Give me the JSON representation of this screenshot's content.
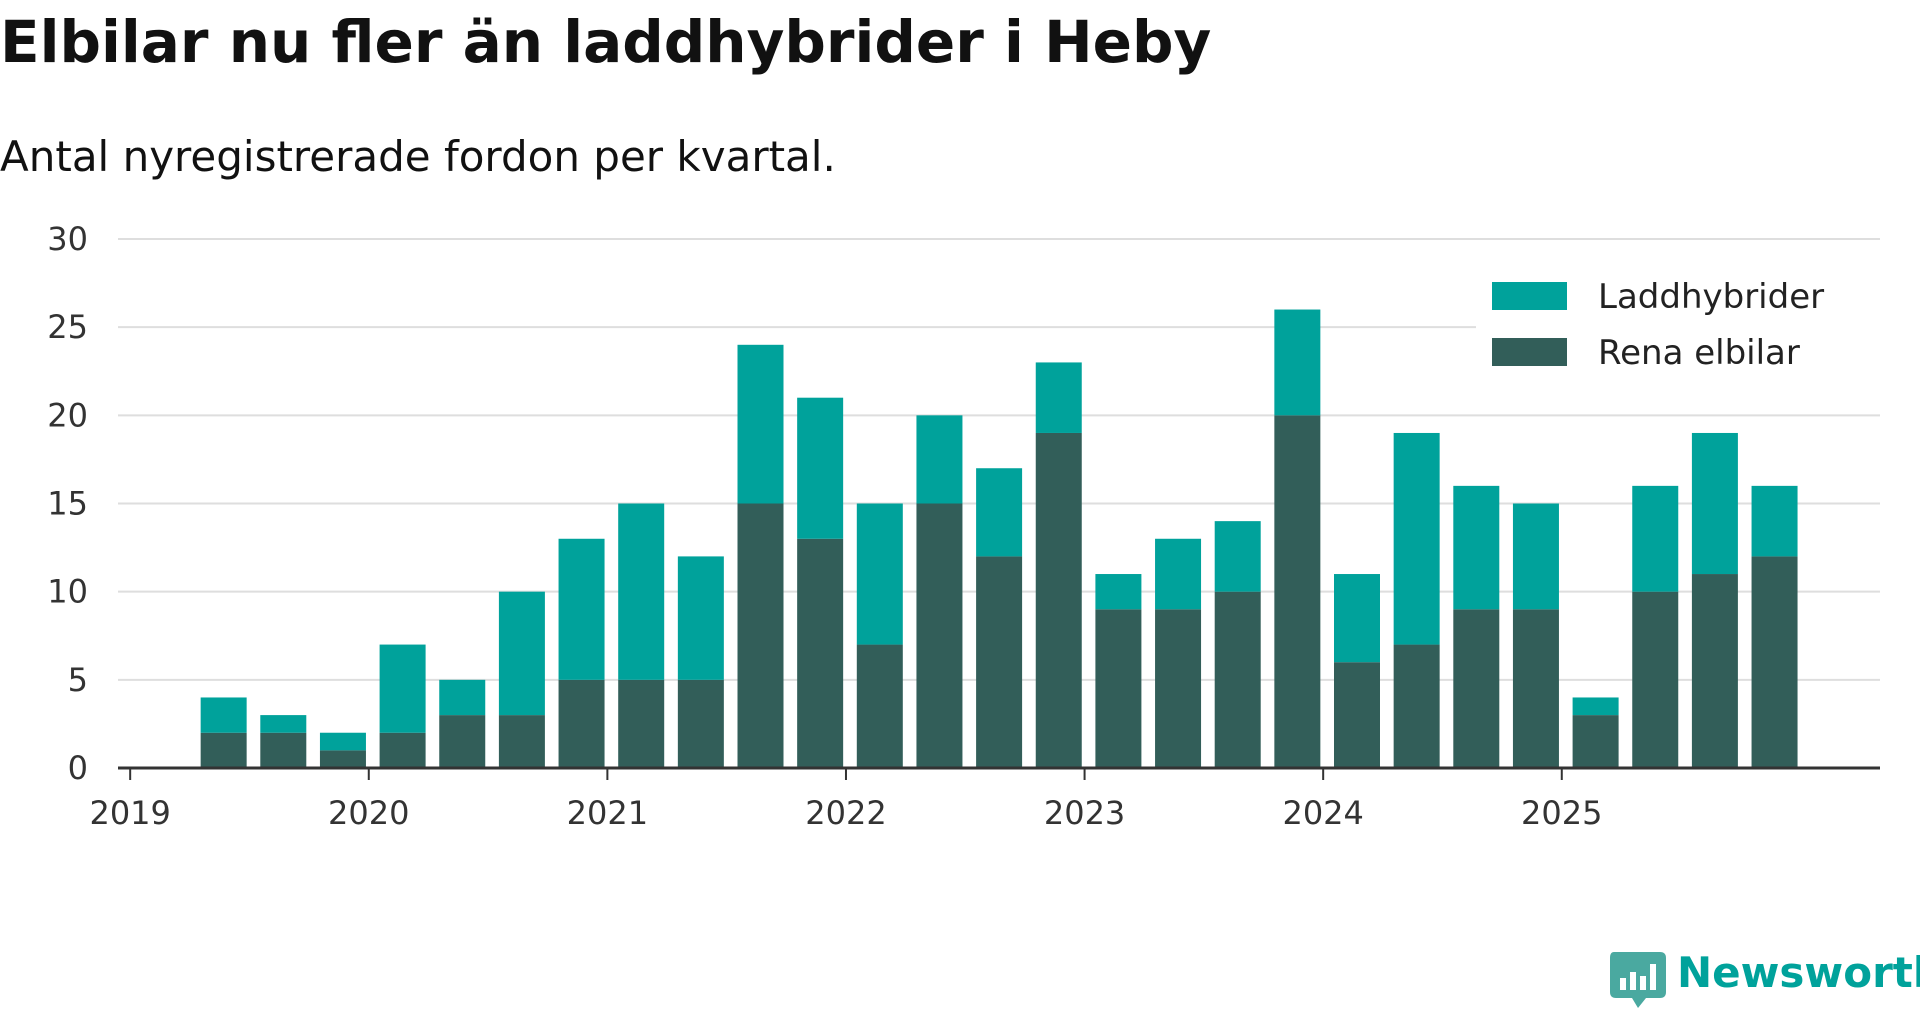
{
  "colors": {
    "phev": "#00a29b",
    "bev": "#325e59",
    "grid": "#dedede",
    "axis": "#333333",
    "brand": "#00a29b"
  },
  "brand": {
    "name": "Newsworthy"
  },
  "chart_data": {
    "type": "bar",
    "stacked": true,
    "title": "Elbilar nu fler än laddhybrider i Heby",
    "subtitle": "Antal nyregistrerade fordon per kvartal.",
    "xlabel": "",
    "ylabel": "",
    "ylim": [
      0,
      30
    ],
    "yticks": [
      0,
      5,
      10,
      15,
      20,
      25,
      30
    ],
    "xticks": [
      "2019",
      "2020",
      "2021",
      "2022",
      "2023",
      "2024",
      "2025"
    ],
    "grid": true,
    "legend_position": "top-right",
    "categories": [
      "2019 Q1",
      "2019 Q2",
      "2019 Q3",
      "2019 Q4",
      "2020 Q1",
      "2020 Q2",
      "2020 Q3",
      "2020 Q4",
      "2021 Q1",
      "2021 Q2",
      "2021 Q3",
      "2021 Q4",
      "2022 Q1",
      "2022 Q2",
      "2022 Q3",
      "2022 Q4",
      "2023 Q1",
      "2023 Q2",
      "2023 Q3",
      "2023 Q4",
      "2024 Q1",
      "2024 Q2",
      "2024 Q3",
      "2024 Q4",
      "2025 Q1",
      "2025 Q2",
      "2025 Q3",
      "2025 Q4"
    ],
    "series": [
      {
        "name": "Rena elbilar",
        "color": "#325e59",
        "values": [
          0,
          2,
          2,
          1,
          2,
          3,
          3,
          5,
          5,
          5,
          15,
          13,
          7,
          15,
          12,
          19,
          9,
          9,
          10,
          20,
          6,
          7,
          9,
          9,
          3,
          10,
          11,
          12
        ]
      },
      {
        "name": "Laddhybrider",
        "color": "#00a29b",
        "values": [
          0,
          2,
          1,
          1,
          5,
          2,
          7,
          8,
          10,
          7,
          9,
          8,
          8,
          5,
          5,
          4,
          2,
          4,
          4,
          6,
          5,
          12,
          7,
          6,
          1,
          6,
          8,
          4
        ]
      }
    ],
    "legend": [
      "Laddhybrider",
      "Rena elbilar"
    ]
  }
}
